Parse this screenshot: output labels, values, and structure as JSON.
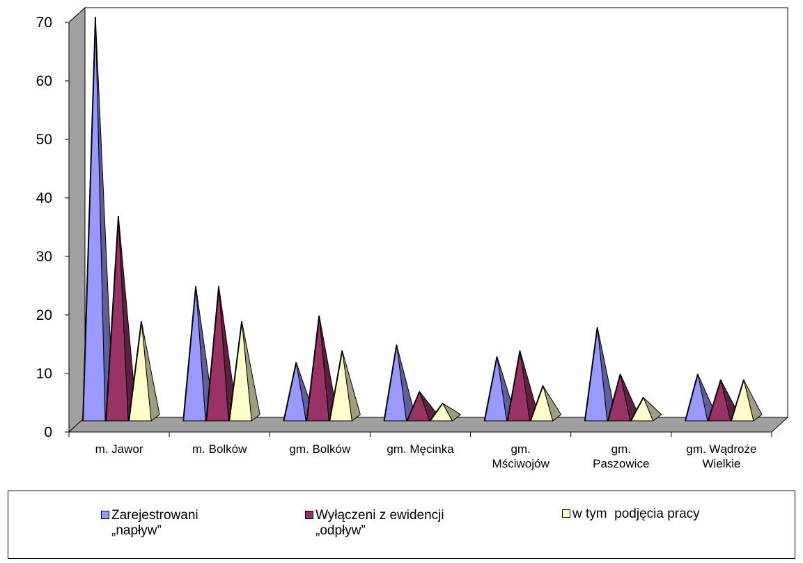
{
  "chart_data": {
    "type": "bar",
    "bar_shape": "pyramid",
    "three_d": true,
    "categories": [
      [
        "m. Jawor"
      ],
      [
        "m. Bolków"
      ],
      [
        "gm. Bolków"
      ],
      [
        "gm. Męcinka"
      ],
      [
        "gm.",
        "Mściwojów"
      ],
      [
        "gm.",
        "Paszowice"
      ],
      [
        "gm. Wądroże",
        "Wielkie"
      ]
    ],
    "series": [
      {
        "name": [
          "Zarejestrowani",
          "„napływ”"
        ],
        "color": "#9999FF",
        "values": [
          69,
          23,
          10,
          13,
          11,
          16,
          8
        ]
      },
      {
        "name": [
          "Wyłączeni z ewidencji",
          "„odpływ”"
        ],
        "color": "#993366",
        "values": [
          35,
          23,
          18,
          5,
          12,
          8,
          7
        ]
      },
      {
        "name": [
          "w tym  podjęcia pracy"
        ],
        "color": "#FFFFCC",
        "values": [
          17,
          17,
          12,
          3,
          6,
          4,
          7
        ]
      }
    ],
    "yticks": [
      0,
      10,
      20,
      30,
      40,
      50,
      60,
      70
    ],
    "ylim": [
      0,
      70
    ],
    "grid": false,
    "legend_position": "bottom"
  }
}
